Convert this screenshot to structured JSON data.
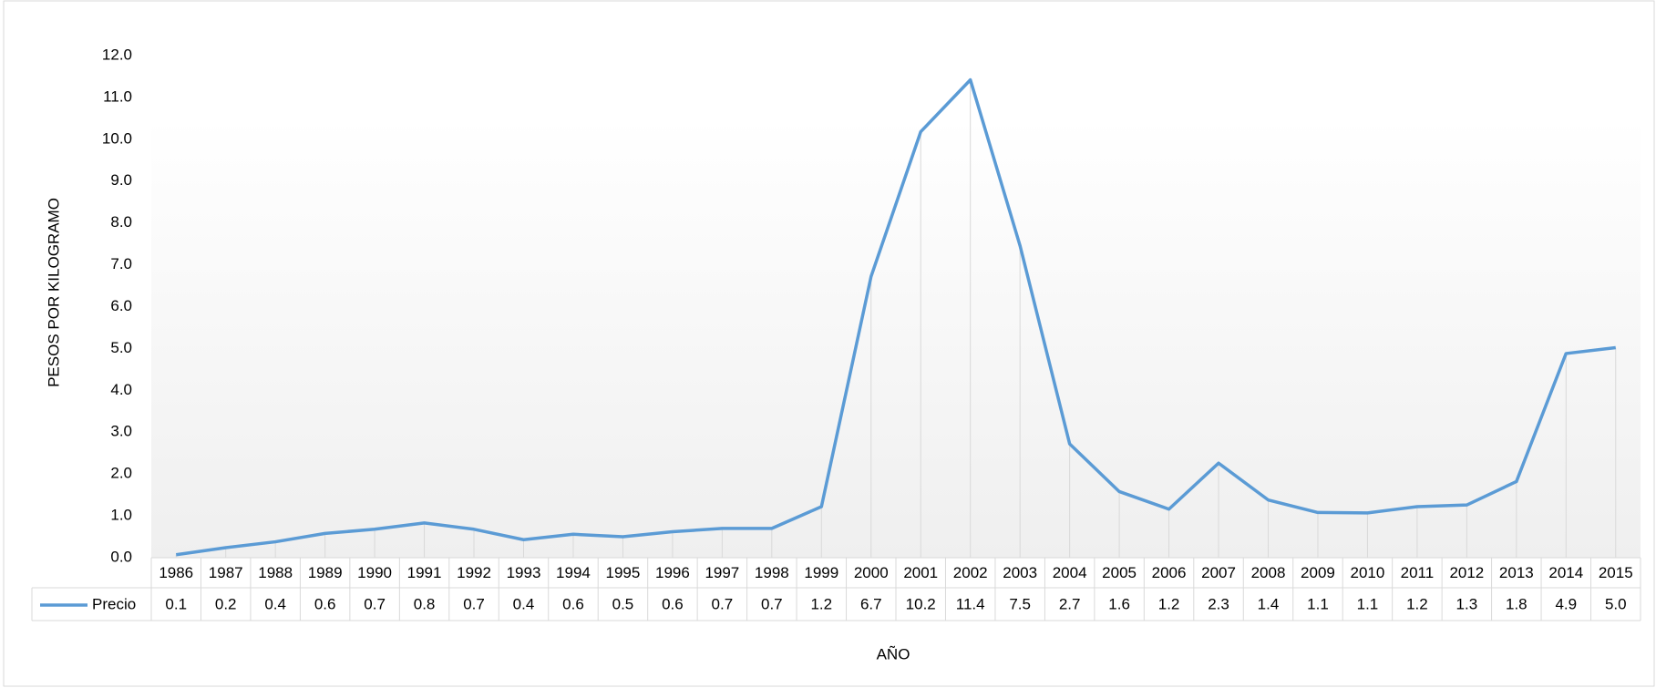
{
  "chart_data": {
    "type": "line",
    "x_label": "AÑO",
    "y_label": "PESOS POR KILOGRAMO",
    "categories": [
      "1986",
      "1987",
      "1988",
      "1989",
      "1990",
      "1991",
      "1992",
      "1993",
      "1994",
      "1995",
      "1996",
      "1997",
      "1998",
      "1999",
      "2000",
      "2001",
      "2002",
      "2003",
      "2004",
      "2005",
      "2006",
      "2007",
      "2008",
      "2009",
      "2010",
      "2011",
      "2012",
      "2013",
      "2014",
      "2015"
    ],
    "series": [
      {
        "name": "Precio",
        "color": "#5b9bd5",
        "values": [
          0.07,
          0.24,
          0.38,
          0.58,
          0.68,
          0.83,
          0.68,
          0.43,
          0.56,
          0.5,
          0.62,
          0.7,
          0.7,
          1.22,
          6.72,
          10.18,
          11.42,
          7.46,
          2.72,
          1.58,
          1.16,
          2.26,
          1.38,
          1.08,
          1.07,
          1.22,
          1.26,
          1.82,
          4.88,
          5.02
        ],
        "value_labels": [
          "0.1",
          "0.2",
          "0.4",
          "0.6",
          "0.7",
          "0.8",
          "0.7",
          "0.4",
          "0.6",
          "0.5",
          "0.6",
          "0.7",
          "0.7",
          "1.2",
          "6.7",
          "10.2",
          "11.4",
          "7.5",
          "2.7",
          "1.6",
          "1.2",
          "2.3",
          "1.4",
          "1.1",
          "1.1",
          "1.2",
          "1.3",
          "1.8",
          "4.9",
          "5.0"
        ]
      }
    ],
    "ylim": [
      0,
      12
    ],
    "yticks": [
      {
        "value": 0,
        "label": "0.0"
      },
      {
        "value": 1,
        "label": "1.0"
      },
      {
        "value": 2,
        "label": "2.0"
      },
      {
        "value": 3,
        "label": "3.0"
      },
      {
        "value": 4,
        "label": "4.0"
      },
      {
        "value": 5,
        "label": "5.0"
      },
      {
        "value": 6,
        "label": "6.0"
      },
      {
        "value": 7,
        "label": "7.0"
      },
      {
        "value": 8,
        "label": "8.0"
      },
      {
        "value": 9,
        "label": "9.0"
      },
      {
        "value": 10,
        "label": "10.0"
      },
      {
        "value": 11,
        "label": "11.0"
      },
      {
        "value": 12,
        "label": "12.0"
      }
    ],
    "drop_lines": true,
    "data_table": true
  }
}
